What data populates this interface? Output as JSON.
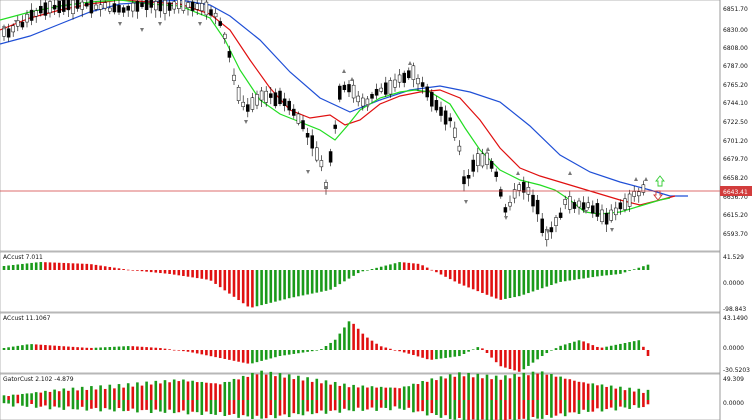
{
  "panels": {
    "price": {
      "current_price": "6643.41",
      "axis_labels": [
        "6851.70",
        "6830.00",
        "6808.00",
        "6787.00",
        "6765.20",
        "6744.10",
        "6722.50",
        "6701.20",
        "6679.70",
        "6658.20",
        "6636.70",
        "6615.20",
        "6593.70"
      ]
    },
    "ac1": {
      "label": "ACcust 7.011",
      "axis_labels": [
        "41.529",
        "0.0000",
        "-98.843"
      ]
    },
    "ac2": {
      "label": "ACcust 11.1067",
      "axis_labels": [
        "43.1490",
        "0.0000",
        "-30.5203"
      ]
    },
    "gator": {
      "label": "GatorCust 2.102 -4.879",
      "axis_labels": [
        "49.309",
        "0.0000"
      ]
    }
  },
  "colors": {
    "bull": "#1a9a1a",
    "bear": "#e01010",
    "jaw": "#1f4fd6",
    "teeth": "#e01010",
    "lips": "#22dd22",
    "price_line": "#d23c3c",
    "arrow_up": "#33cc33",
    "arrow_down": "#cc3333"
  },
  "icons": [
    "fractal-marker-icon",
    "arrow-up-icon",
    "arrow-down-icon"
  ]
}
